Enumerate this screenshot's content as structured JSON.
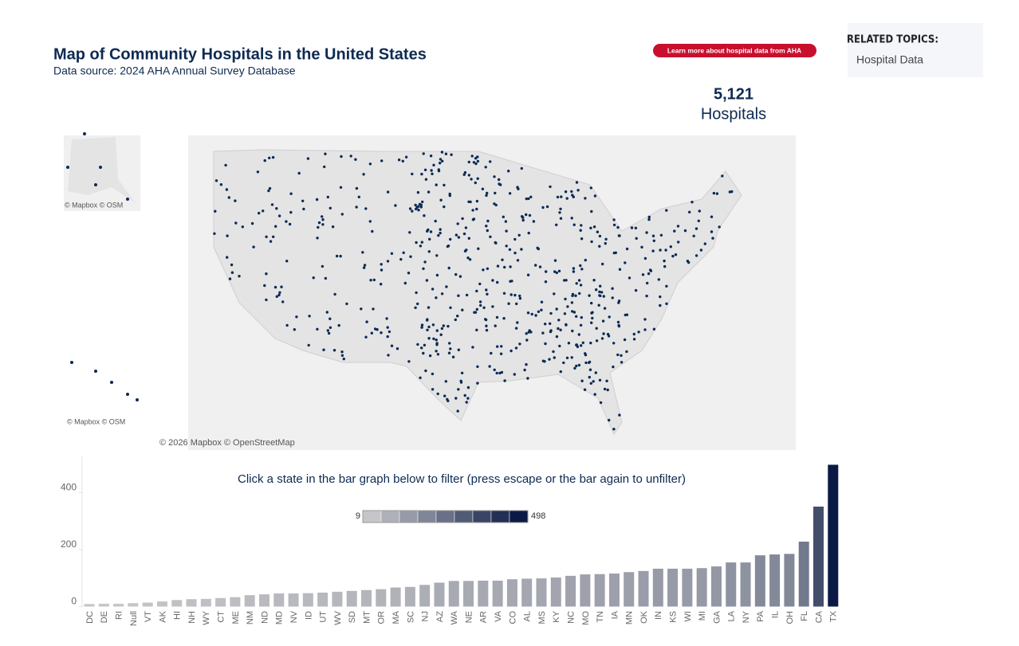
{
  "header": {
    "title": "Map of Community Hospitals in the United States",
    "subtitle": "Data source: 2024 AHA Annual Survey Database",
    "button": "Learn more about hospital data from AHA"
  },
  "related": {
    "heading": "RELATED TOPICS:",
    "links": [
      "Hospital Data"
    ]
  },
  "summary": {
    "count": "5,121",
    "label": "Hospitals"
  },
  "map": {
    "inset_attribution": "© Mapbox  © OSM",
    "attribution": "© 2026 Mapbox  © OpenStreetMap"
  },
  "chart_data": {
    "type": "bar",
    "instruction": "Click a state in the bar graph below to filter (press escape or the bar again to unfilter)",
    "categories": [
      "DC",
      "DE",
      "RI",
      "Null",
      "VT",
      "AK",
      "HI",
      "NH",
      "WY",
      "CT",
      "ME",
      "NM",
      "ND",
      "MD",
      "NV",
      "ID",
      "UT",
      "WV",
      "SD",
      "MT",
      "OR",
      "MA",
      "SC",
      "NJ",
      "AZ",
      "WA",
      "NE",
      "AR",
      "VA",
      "CO",
      "AL",
      "MS",
      "KY",
      "NC",
      "MO",
      "TN",
      "IA",
      "MN",
      "OK",
      "IN",
      "KS",
      "WI",
      "MI",
      "GA",
      "LA",
      "NY",
      "PA",
      "IL",
      "OH",
      "FL",
      "CA",
      "TX"
    ],
    "values": [
      9,
      10,
      10,
      12,
      14,
      18,
      23,
      26,
      27,
      30,
      33,
      40,
      43,
      46,
      46,
      47,
      49,
      52,
      55,
      58,
      61,
      67,
      69,
      76,
      84,
      90,
      90,
      91,
      91,
      96,
      98,
      99,
      102,
      108,
      113,
      114,
      116,
      121,
      125,
      133,
      133,
      133,
      135,
      141,
      155,
      155,
      180,
      183,
      185,
      228,
      351,
      498
    ],
    "ylim": [
      0,
      520
    ],
    "yticks": [
      0,
      200,
      400
    ],
    "color_scale": {
      "min": 9,
      "max": 498,
      "colors": [
        "#c6c6c8",
        "#0b1a45"
      ]
    }
  }
}
